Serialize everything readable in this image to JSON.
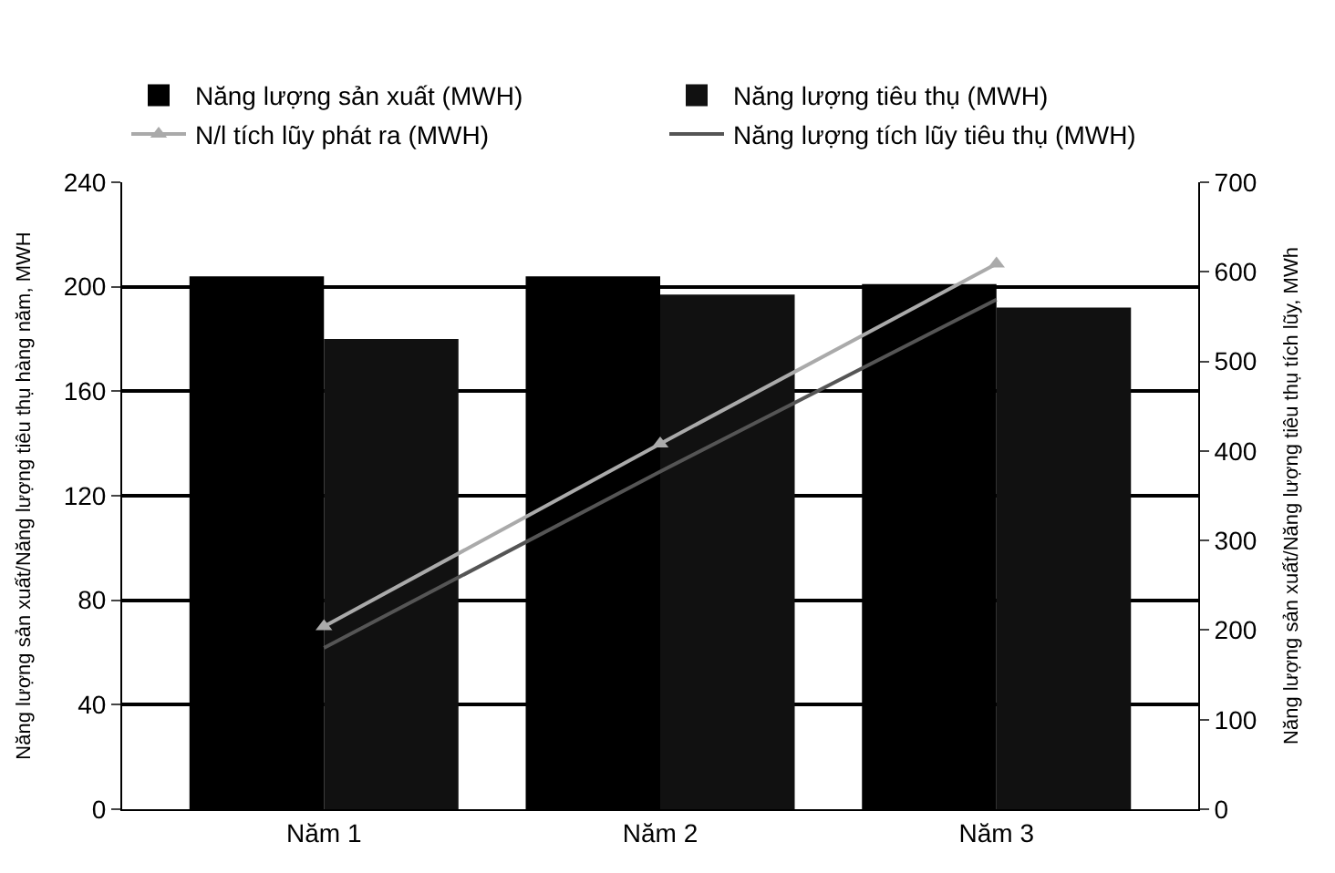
{
  "chart_data": {
    "type": "bar",
    "categories": [
      "Năm 1",
      "Năm 2",
      "Năm 3"
    ],
    "series": [
      {
        "name": "Năng lượng sản xuất (MWH)",
        "color": "#000000",
        "values": [
          204,
          204,
          201
        ]
      },
      {
        "name": "Năng lượng tiêu thụ (MWH)",
        "color": "#111111",
        "values": [
          180,
          197,
          192
        ]
      },
      {
        "name": "N/l tích lũy phát ra (MWH)",
        "type": "line",
        "axis": "y2",
        "color": "#aaaaaa",
        "marker": "triangle",
        "values": [
          204,
          408,
          609
        ]
      },
      {
        "name": "Năng lượng tích lũy tiêu thụ (MWH)",
        "type": "line",
        "axis": "y2",
        "color": "#555555",
        "marker": "none",
        "values": [
          180,
          377,
          569
        ]
      }
    ],
    "ylabel": "Năng lượng sản xuất/Năng lượng tiêu thụ hàng năm, MWH",
    "y2label": "Năng lượng sản xuất/Năng lượng tiêu thụ tích lũy, MWh",
    "ylim": [
      0,
      240
    ],
    "yticks": [
      0,
      40,
      80,
      120,
      160,
      200,
      240
    ],
    "y2lim": [
      0,
      700
    ],
    "y2ticks": [
      0,
      100,
      200,
      300,
      400,
      500,
      600,
      700
    ],
    "grid": "y",
    "legend": "top"
  }
}
